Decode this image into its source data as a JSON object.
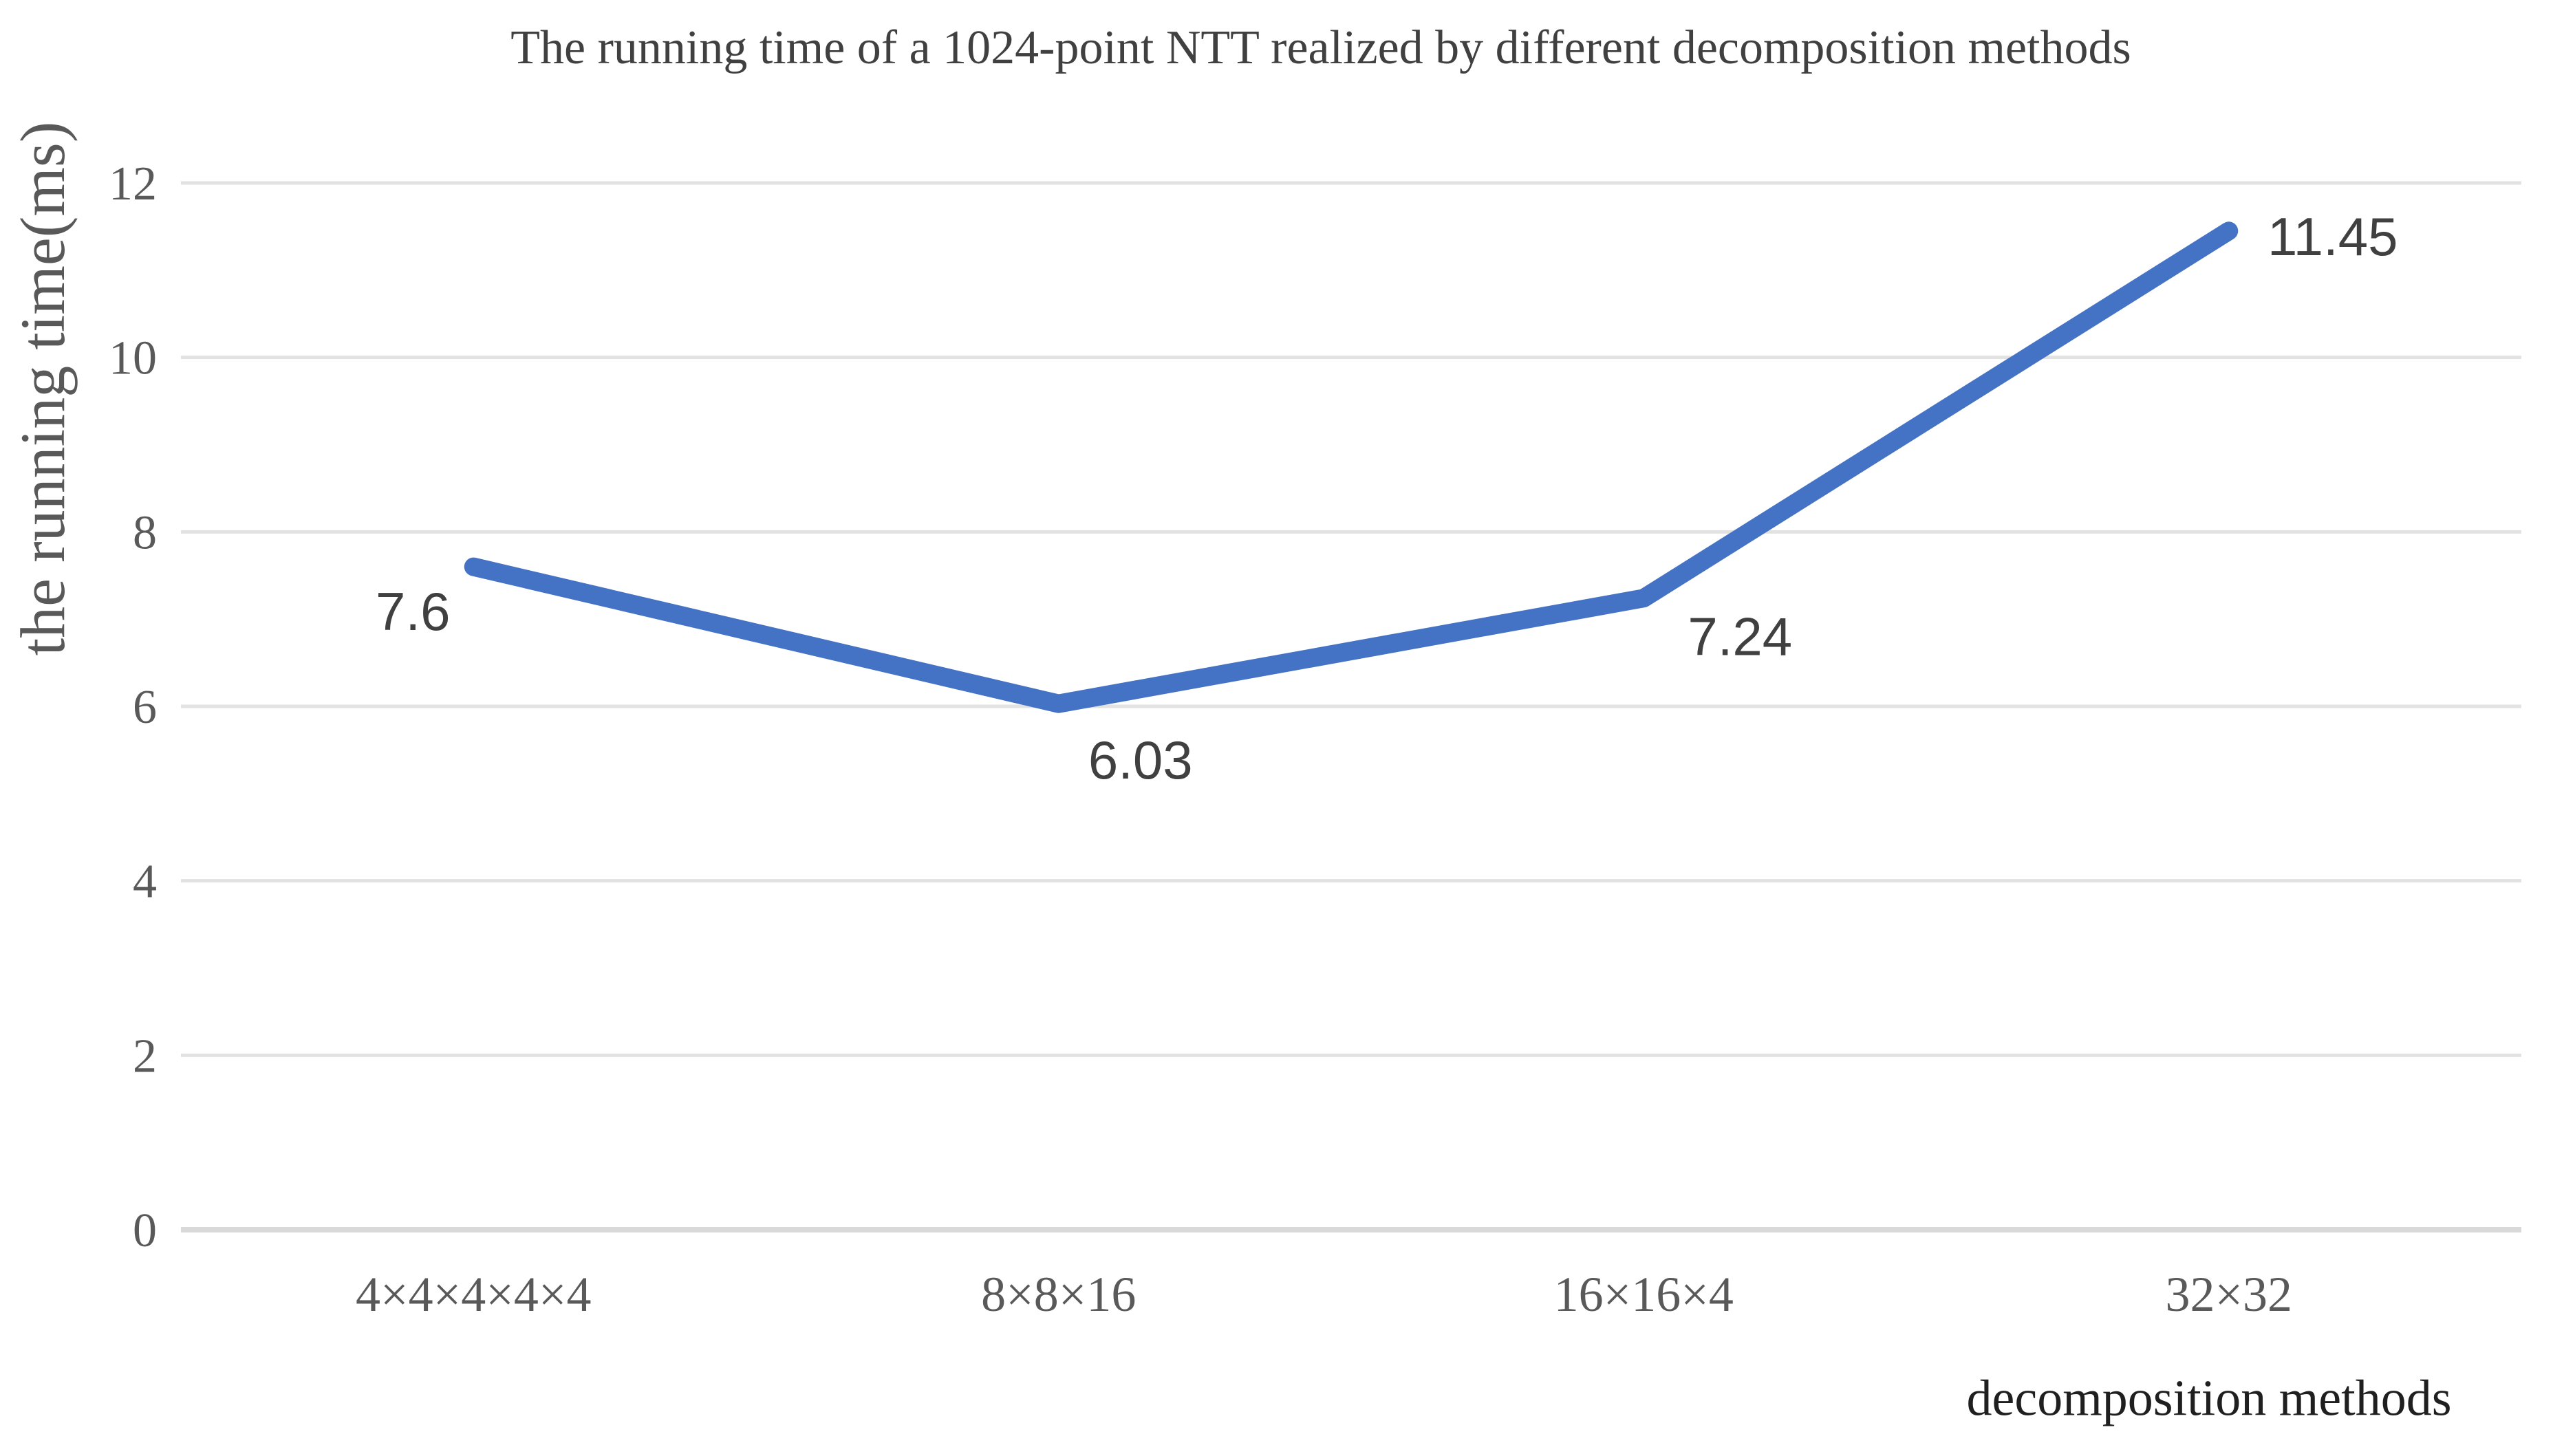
{
  "page": {
    "background": "#ffffff"
  },
  "chart_data": {
    "type": "line",
    "title": "The running time of a 1024-point NTT realized by different decomposition methods",
    "xlabel": "decomposition methods",
    "ylabel": "the running time(ms)",
    "categories": [
      "4×4×4×4×4",
      "8×8×16",
      "16×16×4",
      "32×32"
    ],
    "series": [
      {
        "name": "running time",
        "values": [
          7.6,
          6.03,
          7.24,
          11.45
        ],
        "labels": [
          "7.6",
          "6.03",
          "7.24",
          "11.45"
        ],
        "color": "#4472C4"
      }
    ],
    "y_ticks": [
      0,
      2,
      4,
      6,
      8,
      10,
      12
    ],
    "ylim": [
      0,
      12
    ],
    "grid": "horizontal",
    "legend": "none",
    "colors": {
      "line": "#4472C4",
      "grid": "#E2E2E2",
      "axis_line": "#D9D9D9",
      "tick_text": "#595959",
      "category_text": "#595959",
      "data_label_text": "#404040",
      "title_text": "#404040",
      "xlabel_text": "#1F1F1F",
      "ylabel_text": "#595959"
    }
  }
}
